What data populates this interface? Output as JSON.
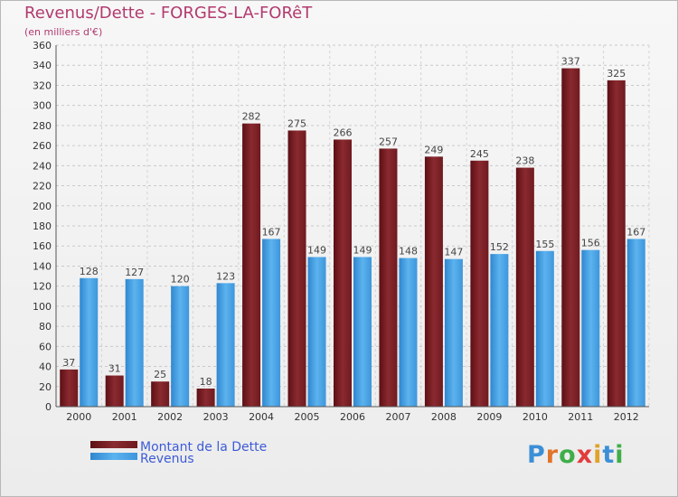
{
  "header": {
    "title": "Revenus/Dette - FORGES-LA-FORêT",
    "subtitle": "(en milliers d'€)"
  },
  "logo": "Proxiti",
  "colors": {
    "dette": "#7a1d22",
    "revenus": "#4aa3e6",
    "title": "#b23a6e",
    "legend_text": "#3d5bd6"
  },
  "chart_data": {
    "type": "bar",
    "title": "Revenus/Dette - FORGES-LA-FORêT",
    "subtitle": "(en milliers d'€)",
    "categories": [
      "2000",
      "2001",
      "2002",
      "2003",
      "2004",
      "2005",
      "2006",
      "2007",
      "2008",
      "2009",
      "2010",
      "2011",
      "2012"
    ],
    "series": [
      {
        "name": "Montant de la Dette",
        "values": [
          37,
          31,
          25,
          18,
          282,
          275,
          266,
          257,
          249,
          245,
          238,
          337,
          325
        ]
      },
      {
        "name": "Revenus",
        "values": [
          128,
          127,
          120,
          123,
          167,
          149,
          149,
          148,
          147,
          152,
          155,
          156,
          167
        ]
      }
    ],
    "ylim": [
      0,
      360
    ],
    "yticks": [
      0,
      20,
      40,
      60,
      80,
      100,
      120,
      140,
      160,
      180,
      200,
      220,
      240,
      260,
      280,
      300,
      320,
      340,
      360
    ],
    "grid": true,
    "legend": "bottom-left",
    "data_labels": true
  }
}
